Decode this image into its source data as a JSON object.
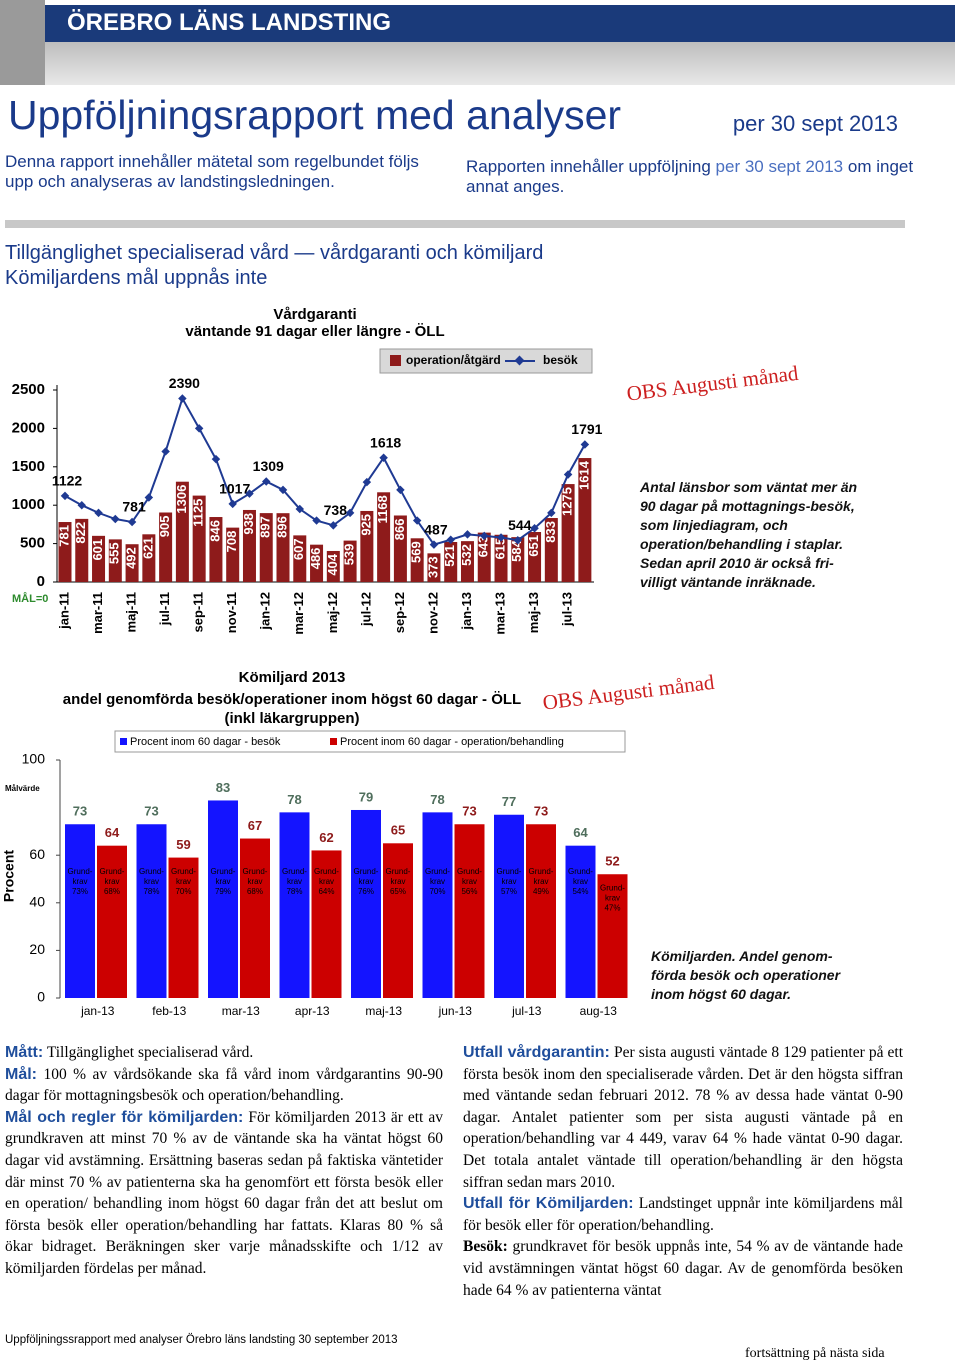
{
  "header": {
    "organization": "ÖREBRO LÄNS LANDSTING",
    "title": "Uppföljningsrapport med analyser",
    "date": "per 30 sept 2013"
  },
  "intro": {
    "left": "Denna rapport innehåller mätetal som regelbundet följs upp och analyseras av landstingsledningen.",
    "right_parts": [
      "Rapporten innehåller uppföljning",
      "per 30 sept 2013",
      "om inget annat anges."
    ]
  },
  "section": {
    "title": "Tillgänglighet specialiserad vård — vårdgaranti och kömiljard",
    "subtitle": "Kömiljardens mål uppnås inte"
  },
  "chart_data": [
    {
      "type": "bar",
      "title": "Vårdgaranti",
      "subtitle": "väntande 91 dagar eller längre - ÖLL",
      "categories": [
        "jan-11",
        null,
        "mar-11",
        null,
        "maj-11",
        null,
        "jul-11",
        null,
        "sep-11",
        null,
        "nov-11",
        null,
        "jan-12",
        null,
        "mar-12",
        null,
        "maj-12",
        null,
        "jul-12",
        null,
        "sep-12",
        null,
        "nov-12",
        null,
        "jan-13",
        null,
        "mar-13",
        null,
        "maj-13",
        null,
        "jul-13",
        null
      ],
      "series": [
        {
          "name": "operation/åtgärd",
          "type": "bar",
          "color": "#8e1b1b",
          "values": [
            781,
            822,
            601,
            555,
            492,
            621,
            905,
            1306,
            1125,
            846,
            708,
            938,
            897,
            896,
            607,
            486,
            404,
            539,
            925,
            1168,
            866,
            569,
            373,
            521,
            532,
            643,
            615,
            584,
            651,
            833,
            1275,
            1614
          ]
        },
        {
          "name": "besök",
          "type": "line",
          "color": "#1f3a93",
          "values": [
            1122,
            1000,
            900,
            820,
            781,
            1100,
            1700,
            2390,
            2000,
            1600,
            1017,
            1150,
            1309,
            1200,
            950,
            800,
            738,
            900,
            1300,
            1618,
            1200,
            800,
            487,
            550,
            620,
            600,
            580,
            544,
            700,
            900,
            1400,
            1791
          ],
          "value_labels": [
            "1122",
            null,
            null,
            null,
            "781",
            null,
            null,
            "2390",
            null,
            null,
            "1017",
            null,
            "1309",
            null,
            null,
            null,
            "738",
            null,
            null,
            "1618",
            null,
            null,
            "487",
            null,
            null,
            null,
            null,
            "544",
            null,
            null,
            null,
            "1791"
          ]
        }
      ],
      "ylim": [
        0,
        2500
      ],
      "yticks": [
        0,
        500,
        1000,
        1500,
        2000,
        2500
      ],
      "target_label": "MÅL=0",
      "annotation": "OBS Augusti månad",
      "note": "Antal länsbor som väntat mer än 90 dagar på mottagnings-besök, som linjediagram, och operation/behandling i staplar. Sedan april 2010 är också fri-villigt väntande inräknade."
    },
    {
      "type": "bar",
      "title": "Kömiljard 2013",
      "subtitle": "andel genomförda besök/operationer inom högst 60 dagar - ÖLL",
      "subtitle2": "(inkl läkargruppen)",
      "y_label": "Procent",
      "target_text": "Målvärde",
      "categories": [
        "jan-13",
        "feb-13",
        "mar-13",
        "apr-13",
        "maj-13",
        "jun-13",
        "jul-13",
        "aug-13"
      ],
      "requirement_lines": [
        "Grund-",
        "krav"
      ],
      "series": [
        {
          "name": "Procent inom 60 dagar - besök",
          "type": "bar",
          "color": "#1414ff",
          "label_color": "#4f6e5c",
          "values": [
            73,
            73,
            83,
            78,
            79,
            78,
            77,
            64
          ],
          "requirement_labels": [
            "73%",
            "78%",
            "79%",
            "78%",
            "76%",
            "70%",
            "57%",
            "54%"
          ]
        },
        {
          "name": "Procent inom 60 dagar - operation/behandling",
          "type": "bar",
          "color": "#cc0000",
          "label_color": "#8e1b1b",
          "values": [
            64,
            59,
            67,
            62,
            65,
            73,
            73,
            52
          ],
          "requirement_labels": [
            "68%",
            "70%",
            "68%",
            "64%",
            "65%",
            "56%",
            "49%",
            "47%"
          ]
        }
      ],
      "ylim": [
        0,
        100
      ],
      "yticks": [
        0,
        20,
        40,
        60,
        100
      ],
      "annotation": "OBS Augusti månad",
      "note": "Kömiljarden. Andel genom-förda besök och operationer inom högst 60 dagar."
    }
  ],
  "body": {
    "left": [
      {
        "label": "Mått:",
        "text": "Tillgänglighet specialiserad vård."
      },
      {
        "label": "Mål:",
        "text": "100 % av vårdsökande ska få vård inom vårdgarantins 90-90 dagar för mottagningsbesök och operation/behandling."
      },
      {
        "label": "Mål och regler för kömiljarden:",
        "text": "För kömiljarden 2013 är ett av grundkraven att minst 70 % av de väntande ska ha väntat högst 60 dagar vid avstämning. Ersättning baseras sedan på faktiska väntetider där minst 70 % av patienterna ska ha genomfört ett första besök eller en operation/ behandling inom högst 60 dagar från det att beslut om första besök eller operation/behandling har fattats. Klaras 80 % så ökar bidraget. Beräkningen sker varje månadsskifte och 1/12 av kömiljarden fördelas per månad."
      }
    ],
    "right": [
      {
        "label": "Utfall vårdgarantin:",
        "text": "Per sista augusti väntade 8 129 patienter på ett första besök inom den specialiserade vården. Det är den högsta siffran med väntande sedan februari 2012. 78 % av dessa hade väntat 0-90 dagar. Antalet patienter som per sista augusti väntade på en operation/behandling var 4 449, varav 64 % hade väntat 0-90 dagar. Det totala antalet väntade till operation/behandling är den högsta siffran sedan mars 2010."
      },
      {
        "label": "Utfall för Kömiljarden:",
        "text": "Landstinget uppnår inte kömiljardens mål för besök eller för operation/behandling."
      },
      {
        "label": "Besök:",
        "text": "grundkravet för besök uppnås inte, 54 % av de väntande hade vid avstämningen väntat högst 60 dagar. Av de genomförda besöken hade 64 % av patienterna väntat"
      }
    ]
  },
  "footer": {
    "left": "Uppföljningssrapport med analyser Örebro läns landsting 30 september 2013",
    "right": "fortsättning på nästa sida"
  }
}
